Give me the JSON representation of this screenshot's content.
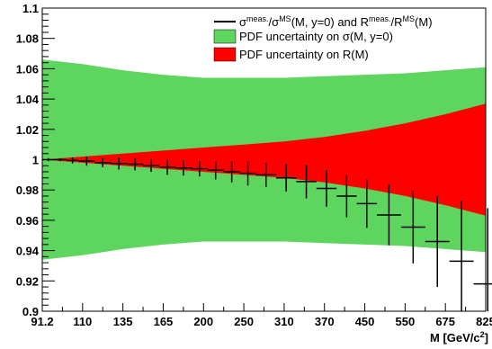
{
  "chart_data": {
    "type": "line",
    "xlabel": "M [GeV/c",
    "xlabel_sup": "2",
    "xlabel_end": "]",
    "x_tick_labels": [
      "91.2",
      "110",
      "135",
      "165",
      "200",
      "250",
      "310",
      "370",
      "450",
      "550",
      "675",
      "825"
    ],
    "ylim": [
      0.9,
      1.1
    ],
    "y_tick_labels": [
      "0.9",
      "0.92",
      "0.94",
      "0.96",
      "0.98",
      "1",
      "1.02",
      "1.04",
      "1.06",
      "1.08",
      "1.1"
    ],
    "y_ticks": [
      0.9,
      0.92,
      0.94,
      0.96,
      0.98,
      1.0,
      1.02,
      1.04,
      1.06,
      1.08,
      1.1
    ],
    "grid": false,
    "legend_position": "top-right",
    "colors": {
      "green": "#5ed55e",
      "red": "#ff0000",
      "line": "#000000"
    },
    "legend": {
      "line": {
        "p1": "σ",
        "p1sup": "meas.",
        "p2": "/σ",
        "p2sup": "MS",
        "p3": "(M, y=0)   and   R",
        "p3sup": "meas.",
        "p4": "/R",
        "p4sup": "MS",
        "p5": "(M)"
      },
      "green": "PDF uncertainty on σ(M, y=0)",
      "red": "PDF uncertainty on R(M)"
    },
    "series": [
      {
        "kind": "band-green",
        "x_index": [
          0,
          1,
          2,
          3,
          4,
          5,
          6,
          7,
          8,
          9,
          10,
          11
        ],
        "upper": [
          1.066,
          1.063,
          1.059,
          1.056,
          1.054,
          1.054,
          1.054,
          1.055,
          1.056,
          1.057,
          1.059,
          1.061
        ],
        "lower": [
          0.934,
          0.937,
          0.941,
          0.944,
          0.946,
          0.946,
          0.946,
          0.945,
          0.944,
          0.943,
          0.941,
          0.939
        ]
      },
      {
        "kind": "band-red",
        "x_index": [
          0,
          1,
          2,
          3,
          4,
          5,
          6,
          7,
          8,
          9,
          10,
          11
        ],
        "upper": [
          1.0,
          1.002,
          1.004,
          1.006,
          1.008,
          1.01,
          1.012,
          1.015,
          1.019,
          1.024,
          1.03,
          1.037
        ],
        "lower": [
          1.0,
          0.998,
          0.996,
          0.994,
          0.992,
          0.99,
          0.988,
          0.985,
          0.981,
          0.976,
          0.97,
          0.963
        ]
      },
      {
        "kind": "points",
        "points": [
          {
            "x": 0.15,
            "y": 1.0,
            "xerr": 0.15,
            "yerr": 0.001
          },
          {
            "x": 0.45,
            "y": 1.0,
            "xerr": 0.15,
            "yerr": 0.001
          },
          {
            "x": 0.75,
            "y": 0.9995,
            "xerr": 0.15,
            "yerr": 0.002
          },
          {
            "x": 1.1,
            "y": 0.999,
            "xerr": 0.2,
            "yerr": 0.003
          },
          {
            "x": 1.5,
            "y": 0.998,
            "xerr": 0.2,
            "yerr": 0.003
          },
          {
            "x": 1.9,
            "y": 0.9975,
            "xerr": 0.2,
            "yerr": 0.004
          },
          {
            "x": 2.3,
            "y": 0.997,
            "xerr": 0.2,
            "yerr": 0.004
          },
          {
            "x": 2.7,
            "y": 0.996,
            "xerr": 0.2,
            "yerr": 0.004
          },
          {
            "x": 3.1,
            "y": 0.995,
            "xerr": 0.2,
            "yerr": 0.005
          },
          {
            "x": 3.5,
            "y": 0.9945,
            "xerr": 0.2,
            "yerr": 0.005
          },
          {
            "x": 3.9,
            "y": 0.994,
            "xerr": 0.2,
            "yerr": 0.005
          },
          {
            "x": 4.3,
            "y": 0.993,
            "xerr": 0.2,
            "yerr": 0.006
          },
          {
            "x": 4.7,
            "y": 0.992,
            "xerr": 0.2,
            "yerr": 0.007
          },
          {
            "x": 5.1,
            "y": 0.991,
            "xerr": 0.2,
            "yerr": 0.008
          },
          {
            "x": 5.55,
            "y": 0.99,
            "xerr": 0.25,
            "yerr": 0.008
          },
          {
            "x": 6.05,
            "y": 0.988,
            "xerr": 0.25,
            "yerr": 0.009
          },
          {
            "x": 6.55,
            "y": 0.9855,
            "xerr": 0.25,
            "yerr": 0.011
          },
          {
            "x": 7.05,
            "y": 0.981,
            "xerr": 0.25,
            "yerr": 0.012
          },
          {
            "x": 7.55,
            "y": 0.976,
            "xerr": 0.25,
            "yerr": 0.014
          },
          {
            "x": 8.05,
            "y": 0.971,
            "xerr": 0.25,
            "yerr": 0.016
          },
          {
            "x": 8.6,
            "y": 0.9635,
            "xerr": 0.3,
            "yerr": 0.02
          },
          {
            "x": 9.2,
            "y": 0.9555,
            "xerr": 0.3,
            "yerr": 0.024
          },
          {
            "x": 9.8,
            "y": 0.946,
            "xerr": 0.3,
            "yerr": 0.03
          },
          {
            "x": 10.4,
            "y": 0.933,
            "xerr": 0.3,
            "yerr": 0.04
          },
          {
            "x": 11.05,
            "y": 0.918,
            "xerr": 0.35,
            "yerr": 0.05
          }
        ]
      }
    ]
  }
}
